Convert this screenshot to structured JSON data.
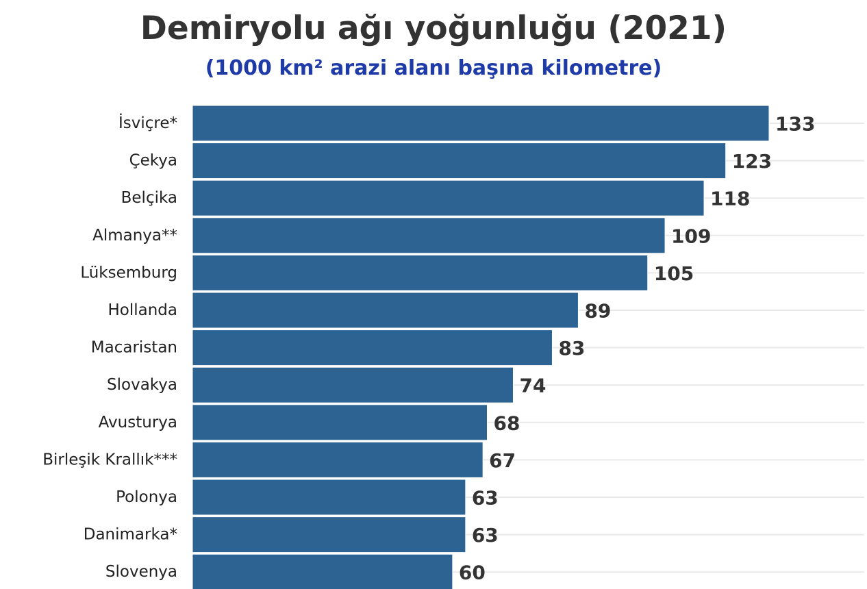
{
  "chart_data": {
    "type": "bar",
    "orientation": "horizontal",
    "title": "Demiryolu ağı yoğunluğu (2021)",
    "subtitle": "(1000 km² arazi alanı başına kilometre)",
    "categories": [
      "İsviçre*",
      "Çekya",
      "Belçika",
      "Almanya**",
      "Lüksemburg",
      "Hollanda",
      "Macaristan",
      "Slovakya",
      "Avusturya",
      "Birleşik Krallık***",
      "Polonya",
      "Danimarka*",
      "Slovenya"
    ],
    "values": [
      133,
      123,
      118,
      109,
      105,
      89,
      83,
      74,
      68,
      67,
      63,
      63,
      60
    ],
    "xlim": [
      0,
      155
    ],
    "grid": "horizontal",
    "bar_color": "#2d6393",
    "bar_border_color": "#ffffff",
    "grid_color": "#e9e9e9"
  }
}
